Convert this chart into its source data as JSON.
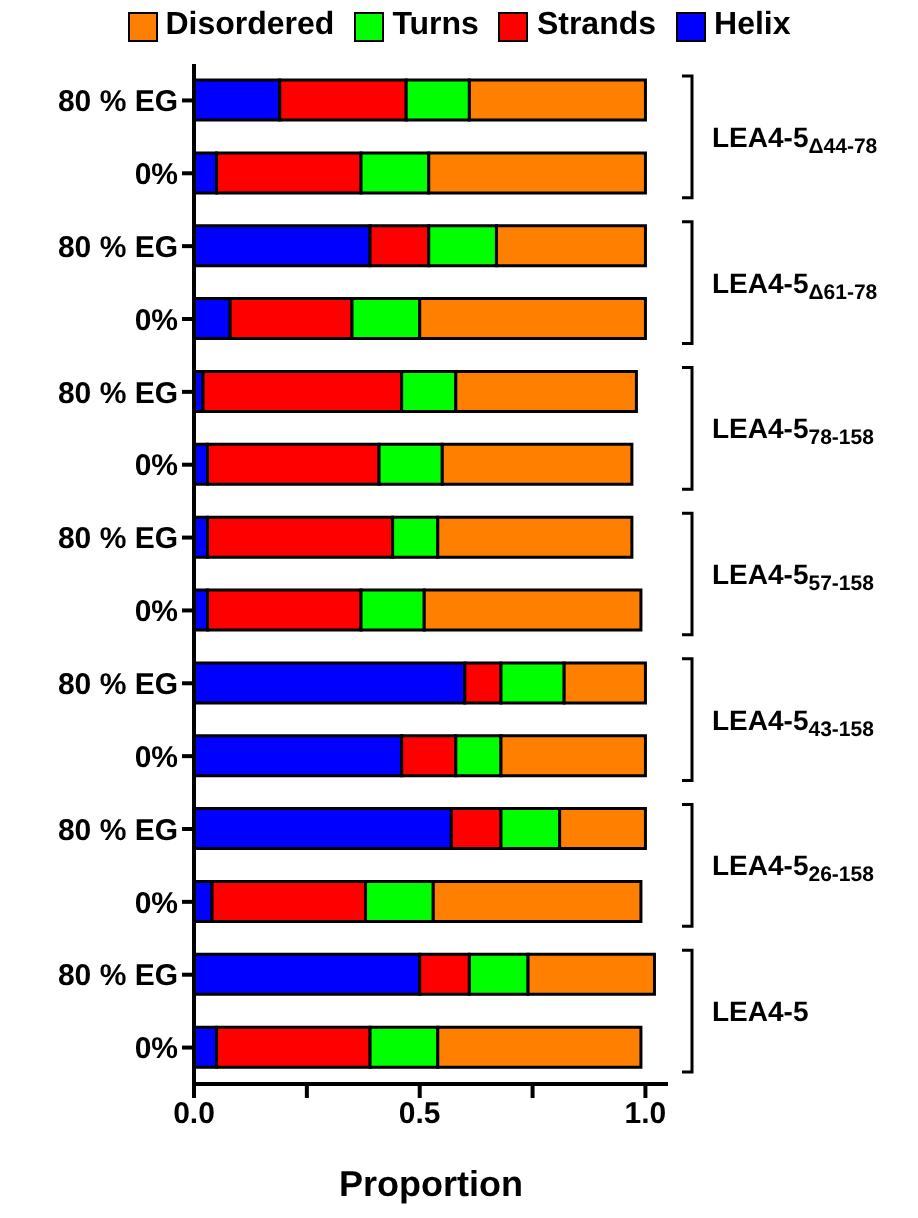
{
  "chart_data": {
    "type": "bar",
    "orientation": "horizontal",
    "stacked": true,
    "legend": "top",
    "xlabel": "Proportion",
    "categories": [
      "80 % EG",
      "0%",
      "80 % EG",
      "0%",
      "80 % EG",
      "0%",
      "80 % EG",
      "0%",
      "80 % EG",
      "0%",
      "80 % EG",
      "0%",
      "80 % EG",
      "0%"
    ],
    "series": [
      {
        "name": "Helix",
        "color": "#0000ff",
        "values": [
          0.19,
          0.05,
          0.39,
          0.08,
          0.02,
          0.03,
          0.03,
          0.03,
          0.6,
          0.46,
          0.57,
          0.04,
          0.5,
          0.05
        ]
      },
      {
        "name": "Strands",
        "color": "#ff0000",
        "values": [
          0.28,
          0.32,
          0.13,
          0.27,
          0.44,
          0.38,
          0.41,
          0.34,
          0.08,
          0.12,
          0.11,
          0.34,
          0.11,
          0.34
        ]
      },
      {
        "name": "Turns",
        "color": "#00ff00",
        "values": [
          0.14,
          0.15,
          0.15,
          0.15,
          0.12,
          0.14,
          0.1,
          0.14,
          0.14,
          0.1,
          0.13,
          0.15,
          0.13,
          0.15
        ]
      },
      {
        "name": "Disordered",
        "color": "#ff8000",
        "values": [
          0.39,
          0.48,
          0.33,
          0.5,
          0.4,
          0.42,
          0.43,
          0.48,
          0.18,
          0.32,
          0.19,
          0.46,
          0.28,
          0.45
        ]
      }
    ],
    "xlim": [
      0,
      1.05
    ],
    "xticks": [
      {
        "value": 0,
        "label": "0.0"
      },
      {
        "value": 0.25,
        "label": null
      },
      {
        "value": 0.5,
        "label": "0.5"
      },
      {
        "value": 0.75,
        "label": null
      },
      {
        "value": 1,
        "label": "1.0"
      }
    ],
    "annotations": [
      "LEA4-5$_{Δ44-78}$",
      "LEA4-5$_{Δ61-78}$",
      "LEA4-5$_{78-158}$",
      "LEA4-5$_{57-158}$",
      "LEA4-5$_{43-158}$",
      "LEA4-5$_{26-158}$",
      "LEA4-5"
    ]
  }
}
